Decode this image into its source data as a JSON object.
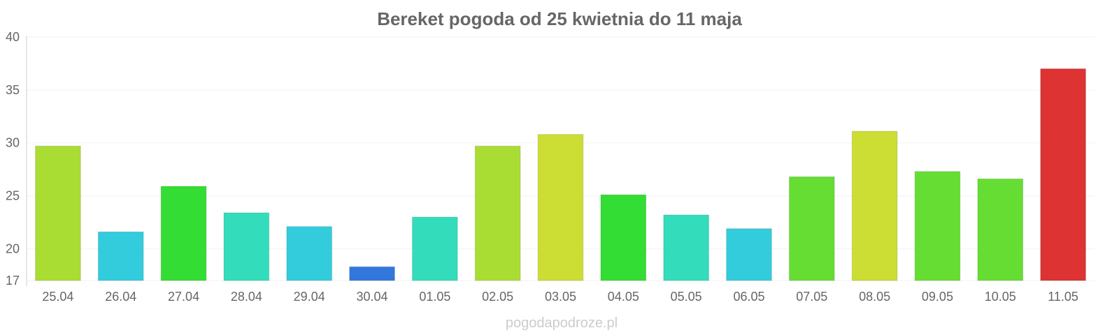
{
  "chart_data": {
    "type": "bar",
    "title": "Bereket pogoda od 25 kwietnia do 11 maja",
    "categories": [
      "25.04",
      "26.04",
      "27.04",
      "28.04",
      "29.04",
      "30.04",
      "01.05",
      "02.05",
      "03.05",
      "04.05",
      "05.05",
      "06.05",
      "07.05",
      "08.05",
      "09.05",
      "10.05",
      "11.05"
    ],
    "values": [
      29.7,
      21.6,
      25.9,
      23.4,
      22.1,
      18.3,
      23.0,
      29.7,
      30.8,
      25.1,
      23.2,
      21.9,
      26.8,
      31.1,
      27.3,
      26.6,
      37.0
    ],
    "colors": [
      "#aadd33",
      "#33ccdd",
      "#33dd33",
      "#33ddbb",
      "#33ccdd",
      "#3377dd",
      "#33ddbb",
      "#aadd33",
      "#ccdd33",
      "#33dd33",
      "#33ddbb",
      "#33ccdd",
      "#66dd33",
      "#ccdd33",
      "#66dd33",
      "#66dd33",
      "#dd3333"
    ],
    "ylim": [
      17,
      40
    ],
    "yticks": [
      17,
      20,
      25,
      30,
      35,
      40
    ],
    "xlabel": "",
    "ylabel": "",
    "grid": true,
    "legend": "none"
  },
  "watermark": "pogodapodroze.pl"
}
